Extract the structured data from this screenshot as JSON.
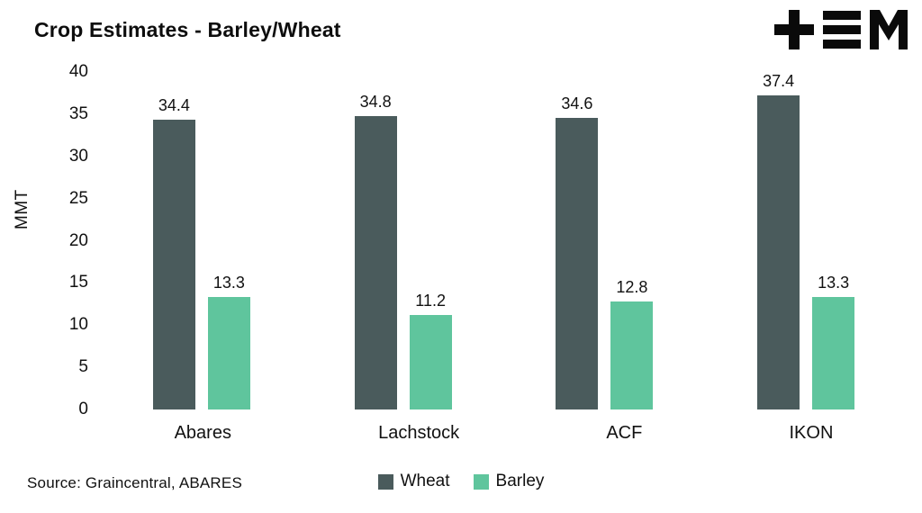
{
  "chart_data": {
    "type": "bar",
    "title": "Crop Estimates - Barley/Wheat",
    "categories": [
      "Abares",
      "Lachstock",
      "ACF",
      "IKON"
    ],
    "series": [
      {
        "name": "Wheat",
        "color": "#4a5b5c",
        "values": [
          34.4,
          34.8,
          34.6,
          37.4
        ]
      },
      {
        "name": "Barley",
        "color": "#5fc59d",
        "values": [
          13.3,
          11.2,
          12.8,
          13.3
        ]
      }
    ],
    "xlabel": "",
    "ylabel": "MMT",
    "ylim": [
      0,
      40
    ],
    "yticks": [
      0,
      5,
      10,
      15,
      20,
      25,
      30,
      35,
      40
    ],
    "grid": false,
    "legend_position": "bottom",
    "value_labels": true
  },
  "footer": {
    "source": "Source: Graincentral, ABARES"
  },
  "icons": {
    "brand": "tem-logo"
  },
  "colors": {
    "wheat": "#4a5b5c",
    "barley": "#5fc59d",
    "text": "#111111",
    "logo": "#0a0a0a"
  }
}
